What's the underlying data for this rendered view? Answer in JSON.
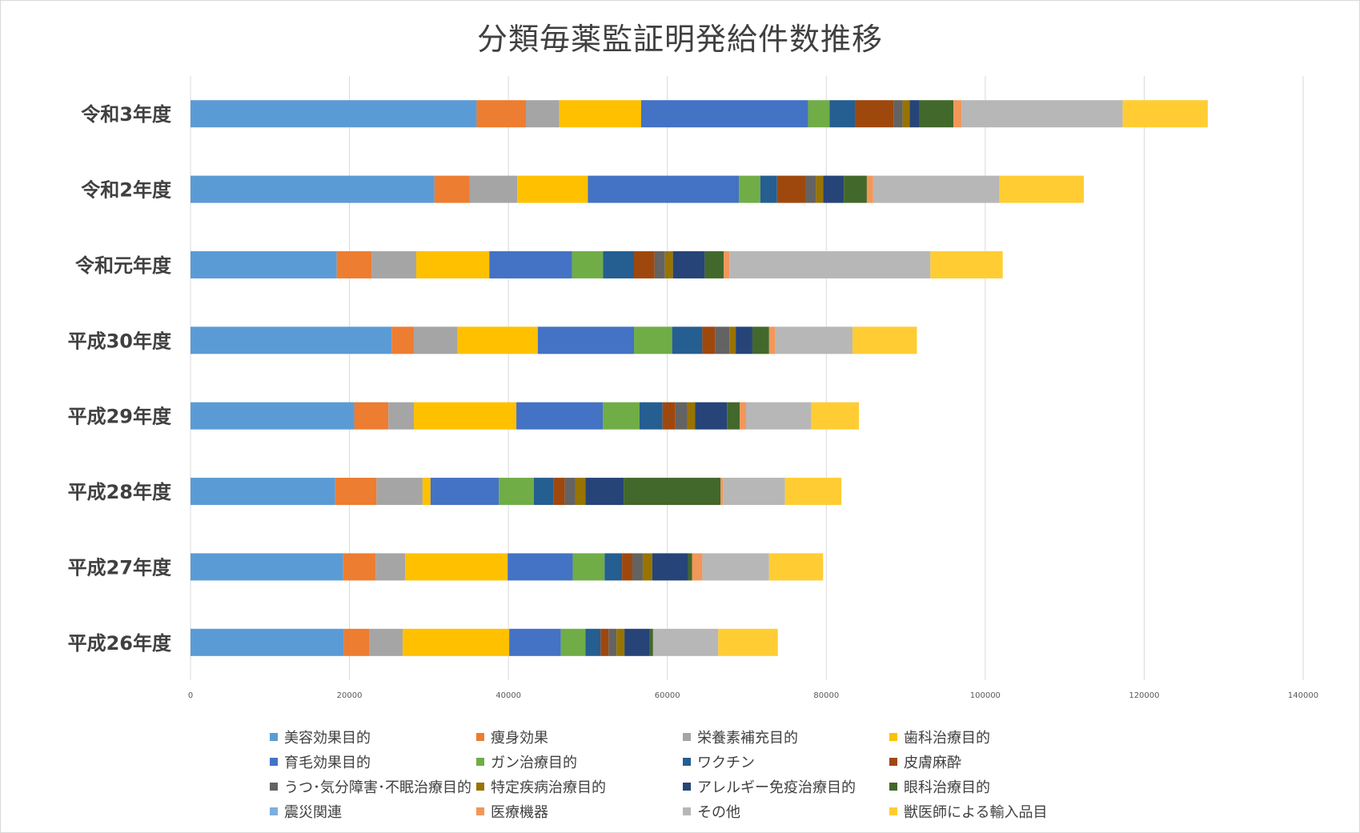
{
  "chart_data": {
    "type": "bar",
    "orientation": "horizontal",
    "stacked": true,
    "title": "分類毎薬監証明発給件数推移",
    "categories": [
      "令和3年度",
      "令和2年度",
      "令和元年度",
      "平成30年度",
      "平成29年度",
      "平成28年度",
      "平成27年度",
      "平成26年度"
    ],
    "xlim": [
      0,
      140000
    ],
    "xticks": [
      "0",
      "20000",
      "40000",
      "60000",
      "80000",
      "100000",
      "120000",
      "140000"
    ],
    "grid": true,
    "legend_position": "bottom",
    "series": [
      {
        "name": "美容効果目的",
        "color": "#5b9bd5",
        "values": [
          36000,
          30700,
          18400,
          25300,
          20600,
          18200,
          19200,
          19300
        ]
      },
      {
        "name": "痩身効果",
        "color": "#ed7d31",
        "values": [
          6200,
          4400,
          4400,
          2800,
          4300,
          5200,
          4100,
          3200
        ]
      },
      {
        "name": "栄養素補充目的",
        "color": "#a5a5a5",
        "values": [
          4200,
          6000,
          5600,
          5500,
          3200,
          5800,
          3700,
          4200
        ]
      },
      {
        "name": "歯科治療目的",
        "color": "#ffc000",
        "values": [
          10300,
          8900,
          9200,
          10100,
          12900,
          1000,
          12900,
          13400
        ]
      },
      {
        "name": "育毛効果目的",
        "color": "#4472c4",
        "values": [
          21000,
          19000,
          10400,
          12100,
          10900,
          8600,
          8200,
          6500
        ]
      },
      {
        "name": "ガン治療目的",
        "color": "#70ad47",
        "values": [
          2700,
          2700,
          3900,
          4800,
          4600,
          4400,
          4000,
          3100
        ]
      },
      {
        "name": "ワクチン",
        "color": "#255e91",
        "values": [
          3200,
          2100,
          3900,
          3800,
          2900,
          2500,
          2200,
          1900
        ]
      },
      {
        "name": "皮膚麻酔",
        "color": "#9e480e",
        "values": [
          4900,
          3600,
          2600,
          1600,
          1600,
          1400,
          1300,
          1000
        ]
      },
      {
        "name": "うつ･気分障害･不眠治療目的",
        "color": "#636363",
        "values": [
          1100,
          1300,
          1300,
          1800,
          1500,
          1300,
          1300,
          1000
        ]
      },
      {
        "name": "特定疾病治療目的",
        "color": "#997300",
        "values": [
          900,
          900,
          1000,
          800,
          1000,
          1300,
          1200,
          1000
        ]
      },
      {
        "name": "アレルギー免疫治療目的",
        "color": "#264478",
        "values": [
          1200,
          2600,
          4000,
          2100,
          4000,
          4800,
          4500,
          3200
        ]
      },
      {
        "name": "眼科治療目的",
        "color": "#43682b",
        "values": [
          4300,
          2900,
          2400,
          2100,
          1600,
          12200,
          500,
          400
        ]
      },
      {
        "name": "震災関連",
        "color": "#7cafdd",
        "values": [
          0,
          0,
          0,
          0,
          0,
          0,
          0,
          0
        ]
      },
      {
        "name": "医療機器",
        "color": "#f1975a",
        "values": [
          1000,
          800,
          700,
          800,
          800,
          300,
          1300,
          0
        ]
      },
      {
        "name": "その他",
        "color": "#b7b7b7",
        "values": [
          20300,
          15900,
          25300,
          9700,
          8200,
          7800,
          8400,
          8200
        ]
      },
      {
        "name": "獣医師による輸入品目",
        "color": "#ffcd33",
        "values": [
          10700,
          10600,
          9100,
          8100,
          6000,
          7100,
          6800,
          7500
        ]
      }
    ]
  }
}
